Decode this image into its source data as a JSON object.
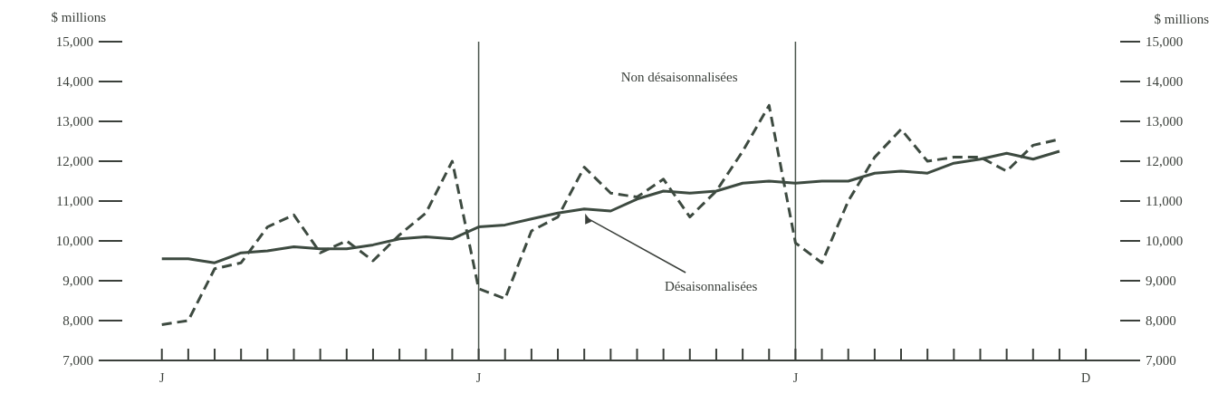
{
  "chart_data": {
    "type": "line",
    "ylabel": "$ millions",
    "y2label": "$ millions",
    "categories": [
      "J",
      null,
      null,
      null,
      null,
      null,
      null,
      null,
      null,
      null,
      null,
      null,
      "J",
      null,
      null,
      null,
      null,
      null,
      null,
      null,
      null,
      null,
      null,
      null,
      "J",
      null,
      null,
      null,
      null,
      null,
      null,
      null,
      null,
      null,
      null,
      "D"
    ],
    "ylim": [
      7000,
      15000
    ],
    "yticks": [
      {
        "value": 7000,
        "label": "7,000"
      },
      {
        "value": 8000,
        "label": "8,000"
      },
      {
        "value": 9000,
        "label": "9,000"
      },
      {
        "value": 10000,
        "label": "10,000"
      },
      {
        "value": 11000,
        "label": "11,000"
      },
      {
        "value": 12000,
        "label": "12,000"
      },
      {
        "value": 13000,
        "label": "13,000"
      },
      {
        "value": 14000,
        "label": "14,000"
      },
      {
        "value": 15000,
        "label": "15,000"
      }
    ],
    "y2lim": [
      7000,
      15000
    ],
    "y2ticks": [
      {
        "value": 7000,
        "label": "7,000"
      },
      {
        "value": 8000,
        "label": "8,000"
      },
      {
        "value": 9000,
        "label": "9,000"
      },
      {
        "value": 10000,
        "label": "10,000"
      },
      {
        "value": 11000,
        "label": "11,000"
      },
      {
        "value": 12000,
        "label": "12,000"
      },
      {
        "value": 13000,
        "label": "13,000"
      },
      {
        "value": 14000,
        "label": "14,000"
      },
      {
        "value": 15000,
        "label": "15,000"
      }
    ],
    "series": [
      {
        "name": "Non désaisonnalisées",
        "color": "#3d4a40",
        "line_style": "dashed",
        "values": [
          7900,
          8000,
          9300,
          9450,
          10350,
          10650,
          9700,
          10000,
          9500,
          10150,
          10700,
          12000,
          8800,
          8550,
          10250,
          10600,
          11850,
          11200,
          11100,
          11550,
          10600,
          11250,
          12250,
          13400,
          9950,
          9450,
          11000,
          12100,
          12800,
          12000,
          12100,
          12100,
          11750,
          12400,
          12550,
          null
        ]
      },
      {
        "name": "Désaisonnalisées",
        "color": "#3d4a40",
        "line_style": "solid",
        "values": [
          9550,
          9550,
          9450,
          9700,
          9750,
          9850,
          9800,
          9800,
          9900,
          10050,
          10100,
          10050,
          10350,
          10400,
          10550,
          10700,
          10800,
          10750,
          11050,
          11250,
          11200,
          11250,
          11450,
          11500,
          11450,
          11500,
          11500,
          11700,
          11750,
          11700,
          11950,
          12050,
          12200,
          12050,
          12250,
          null
        ]
      }
    ]
  }
}
